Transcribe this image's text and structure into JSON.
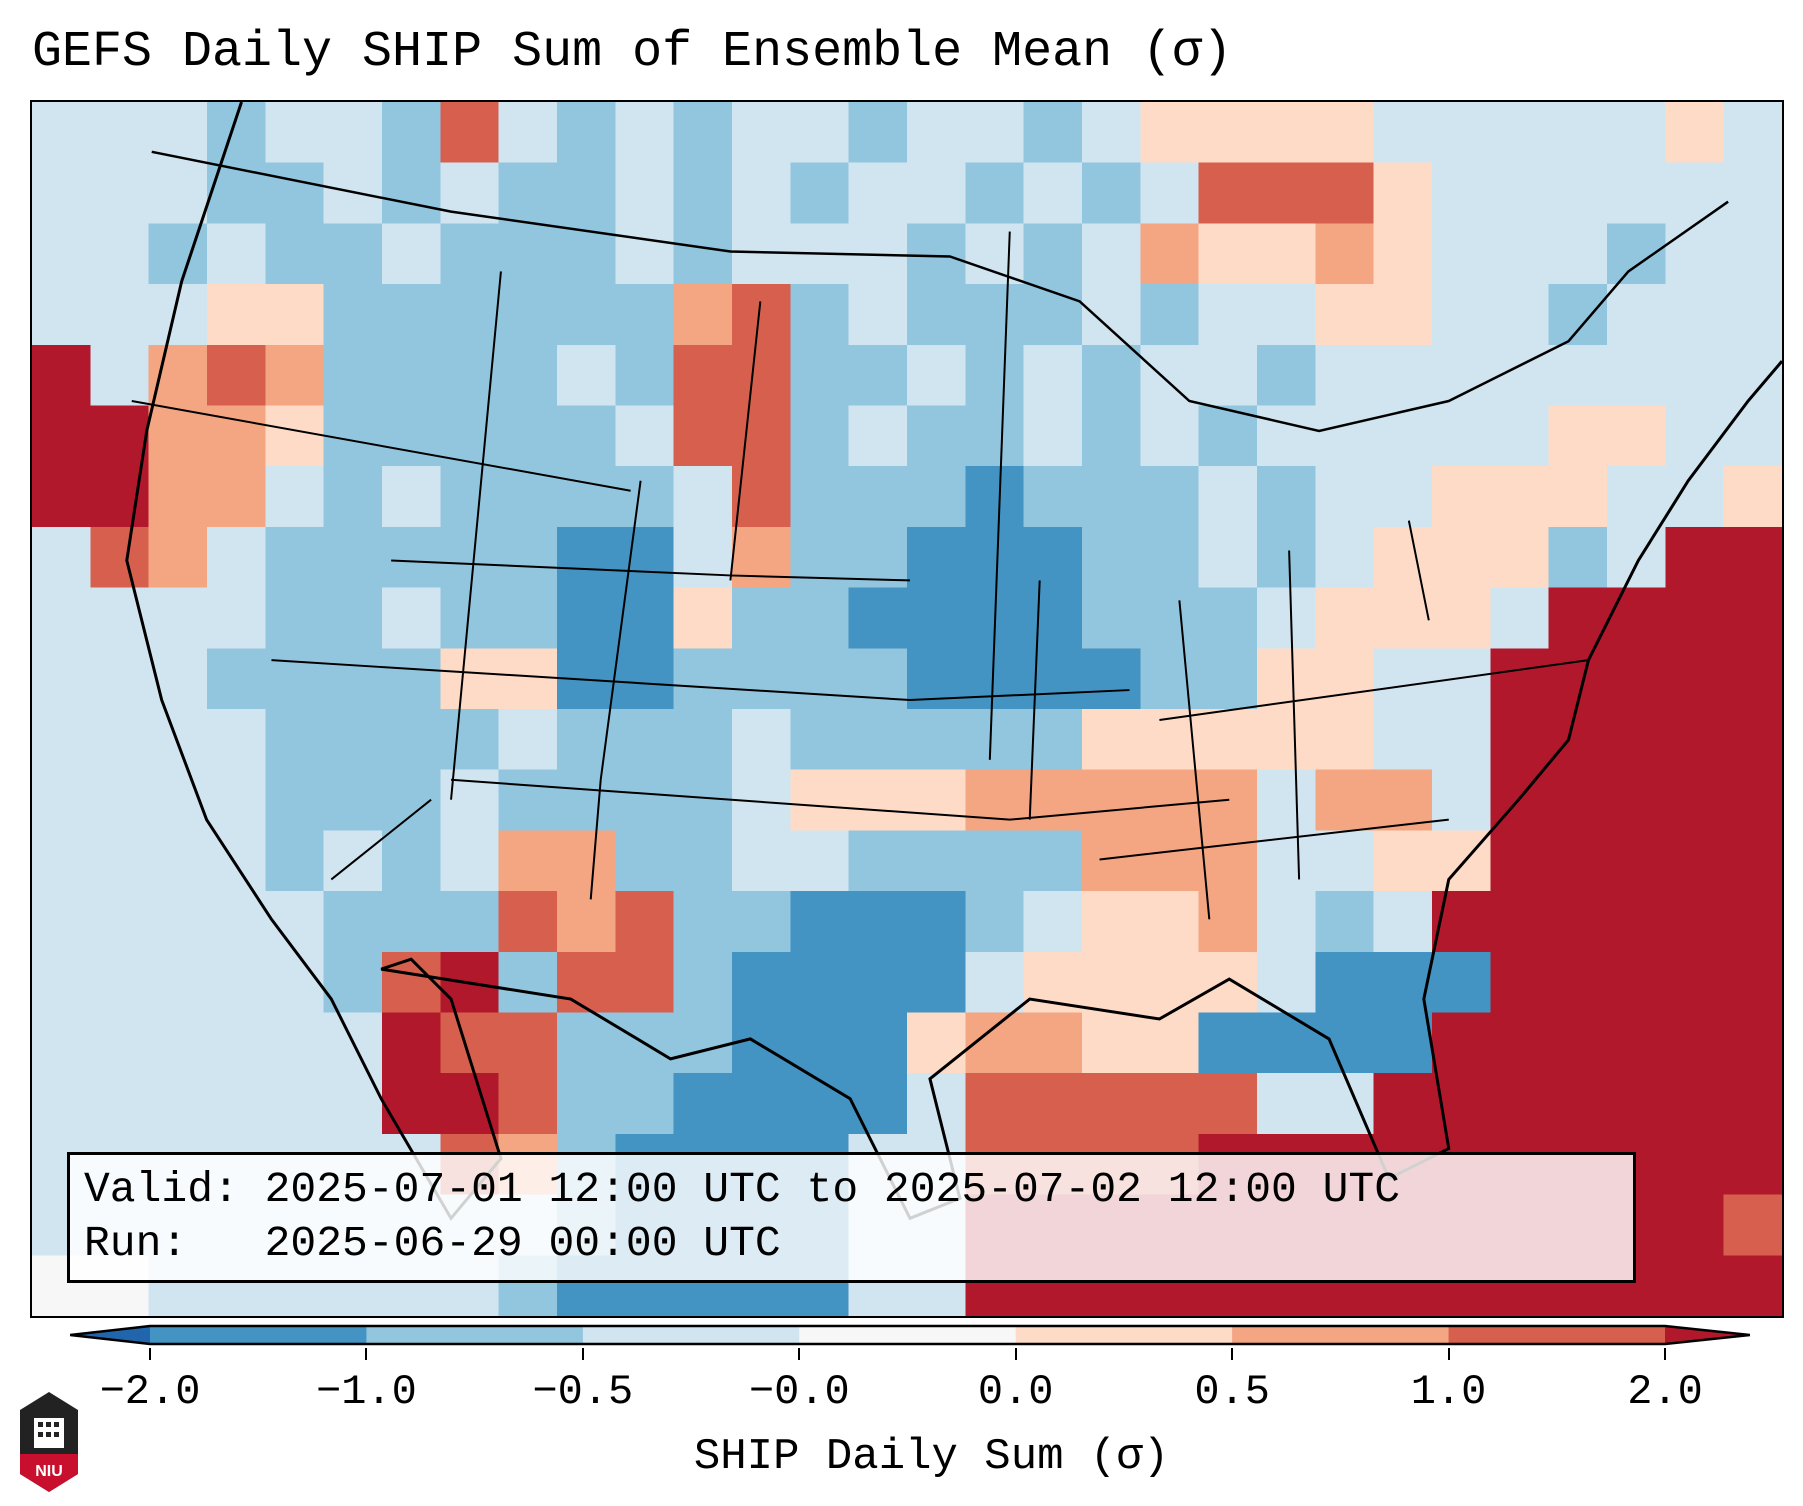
{
  "title": "GEFS Daily SHIP Sum of Ensemble Mean (σ)",
  "info": {
    "valid_line": "Valid: 2025-07-01 12:00 UTC to 2025-07-02 12:00 UTC",
    "run_line": "Run:   2025-06-29 00:00 UTC"
  },
  "colorbar": {
    "label": "SHIP Daily Sum (σ)",
    "tick_labels": [
      "−2.0",
      "−1.0",
      "−0.5",
      "−0.0",
      "0.0",
      "0.5",
      "1.0",
      "2.0"
    ],
    "colors": [
      "#2166ac",
      "#4393c3",
      "#92c5de",
      "#d1e5f0",
      "#f7f7f7",
      "#fddbc7",
      "#f4a582",
      "#d6604d",
      "#b2182b"
    ]
  },
  "logo_text": "NIU",
  "field": {
    "legend": {
      "A": "#4393c3",
      "B": "#92c5de",
      "C": "#d1e5f0",
      "D": "#f7f7f7",
      "E": "#fddbc7",
      "F": "#f4a582",
      "G": "#d6604d",
      "H": "#b2182b"
    },
    "rows": [
      "CCCBCCBGCBCBCCBCCBCEEEECCCCCEC",
      "CCCBBCBCBBCBCBCCBCBCGGGECCCCCC",
      "CCBCBBCBBBCBCCCBCBCFEEFECCCBCC",
      "CCCEEBBBBBBFGBCBBBCBCCEECCBCCC",
      "HCFGFBBBBCBGGBBCBCBCCBCCCCCCCC",
      "HHFFEBBBBBCGGBCBBCBCBCCCCCEECC",
      "HHFFCBCBBBBCGBBBABBBCBCCEEECCE",
      "CGFCBBBBBAACFBBAAABBCBCEEEBCHH",
      "CCCCBBCBBAAEBBAAAABBBCEEECHHHH",
      "CCCBBBBEEAABBBBAAAABBEECCHHHHH",
      "CCCCBBBBCBBBCBBBBBEEEEECCHHHHH",
      "CCCCBBBCBBBBCEEEFFFFFCFFCHHHHH",
      "CCCCBCBCFFBBCCBBBBFFFCCEEHHHHH",
      "CCCCCBBBGFGBBAAABCEEFCBCHHHHHH",
      "CCCCCBGHBGGBAAAACEEEECAAAHHHHH",
      "CCCCCCHGGBBBAAAEFFEEAAAAHHHHHH",
      "CCCCCCHHGBBAAAACGGGGGCCHHHHHHH",
      "CCCCCCCGFBAAAACCGGGGHHHHHHHHHH",
      "CCCCCCCCCBAAAACCHHHHHHHHHHHHHG",
      "DDCCCCCCBAAAAACCHHHHHHHHHHHHHH"
    ]
  }
}
